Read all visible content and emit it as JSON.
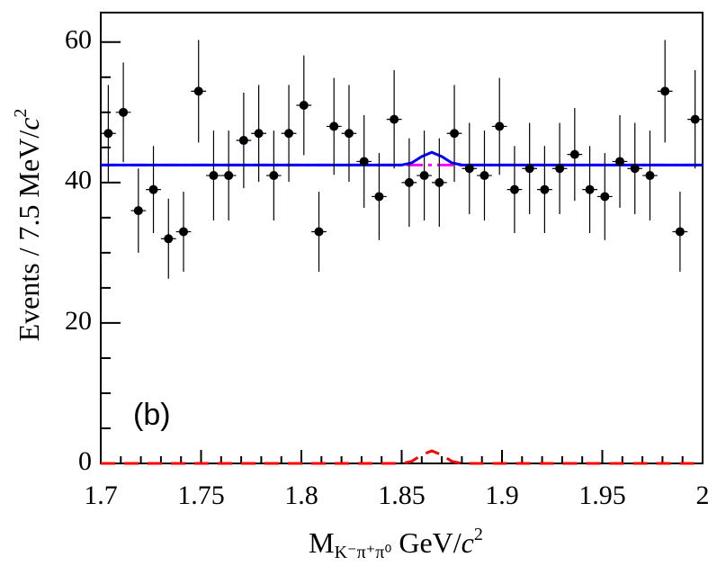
{
  "chart_data": {
    "type": "errorbar",
    "x": [
      1.70375,
      1.71125,
      1.71875,
      1.72625,
      1.73375,
      1.74125,
      1.74875,
      1.75625,
      1.76375,
      1.77125,
      1.77875,
      1.78625,
      1.79375,
      1.80125,
      1.80875,
      1.81625,
      1.82375,
      1.83125,
      1.83875,
      1.84625,
      1.85375,
      1.86125,
      1.86875,
      1.87625,
      1.88375,
      1.89125,
      1.89875,
      1.90625,
      1.91375,
      1.92125,
      1.92875,
      1.93625,
      1.94375,
      1.95125,
      1.95875,
      1.96625,
      1.97375,
      1.98125,
      1.98875,
      1.99625
    ],
    "xerr": 0.00375,
    "values": [
      47,
      50,
      36,
      39,
      32,
      33,
      53,
      41,
      41,
      46,
      47,
      41,
      47,
      51,
      33,
      48,
      47,
      43,
      38,
      49,
      40,
      41,
      40,
      47,
      42,
      41,
      48,
      39,
      42,
      39,
      42,
      44,
      39,
      38,
      43,
      42,
      41,
      53,
      33,
      49
    ],
    "errors": [
      6.9,
      7.1,
      6.0,
      6.2,
      5.7,
      5.7,
      7.3,
      6.4,
      6.4,
      6.8,
      6.9,
      6.4,
      6.9,
      7.1,
      5.7,
      6.9,
      6.9,
      6.6,
      6.2,
      7.0,
      6.3,
      6.4,
      6.3,
      6.9,
      6.5,
      6.4,
      6.9,
      6.2,
      6.5,
      6.2,
      6.5,
      6.6,
      6.2,
      6.2,
      6.6,
      6.5,
      6.4,
      7.3,
      5.7,
      7.0
    ],
    "color": "#000000",
    "curves": [
      {
        "color": "#ff00ff",
        "style": "dashdot",
        "x": [
          1.7,
          2.0
        ],
        "values": [
          42.5,
          42.5
        ]
      },
      {
        "color": "#0000ff",
        "style": "solid",
        "x": [
          1.7,
          1.85,
          1.855,
          1.86,
          1.865,
          1.87,
          1.875,
          1.88,
          2.0
        ],
        "values": [
          42.5,
          42.5,
          42.8,
          43.7,
          44.3,
          43.7,
          42.8,
          42.5,
          42.5
        ]
      },
      {
        "color": "#ff0000",
        "style": "dashed",
        "x": [
          1.7,
          1.85,
          1.855,
          1.86,
          1.865,
          1.87,
          1.875,
          1.88,
          2.0
        ],
        "values": [
          0,
          0,
          0.3,
          1.2,
          1.8,
          1.2,
          0.3,
          0,
          0
        ]
      }
    ],
    "xlim": [
      1.7,
      2.0
    ],
    "ylim": [
      0,
      64.2
    ],
    "xticks": [
      1.7,
      1.75,
      1.8,
      1.85,
      1.9,
      1.95,
      2
    ],
    "yticks": [
      0,
      20,
      40,
      60
    ],
    "xminorticks": [
      1.71,
      1.72,
      1.73,
      1.74,
      1.76,
      1.77,
      1.78,
      1.79,
      1.81,
      1.82,
      1.83,
      1.84,
      1.86,
      1.87,
      1.88,
      1.89,
      1.91,
      1.92,
      1.93,
      1.94,
      1.96,
      1.97,
      1.98,
      1.99
    ],
    "yminorticks": [
      5,
      10,
      15,
      25,
      30,
      35,
      45,
      50,
      55
    ],
    "x_label": {
      "main": "M",
      "sub": "K⁻π⁺π⁰",
      "unit": " GeV/",
      "c": "c",
      "sup": "2"
    },
    "y_label": {
      "main": "Events / 7.5 MeV/",
      "c": "c",
      "sup": "2"
    },
    "annotation": "(b)"
  }
}
